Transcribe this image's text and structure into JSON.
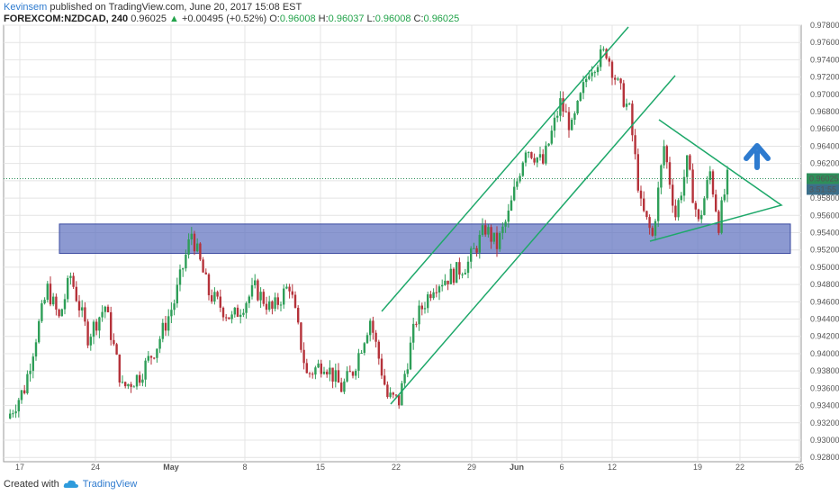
{
  "header": {
    "author": "Kevinsem",
    "published_text": "published on TradingView.com, June 20, 2017 15:08 EST",
    "symbol": "FOREXCOM:NZDCAD, 240",
    "price": "0.96025",
    "change_arrow": "▲",
    "change": "+0.00495 (+0.52%)",
    "o_label": "O:",
    "o_value": "0.96008",
    "h_label": "H:",
    "h_value": "0.96037",
    "l_label": "L:",
    "l_value": "0.96008",
    "c_label": "C:",
    "c_value": "0.96025"
  },
  "footer": {
    "created_with": "Created with",
    "brand": "TradingView",
    "logo_icon": "tradingview-cloud-icon"
  },
  "colors": {
    "up": "#2e9e58",
    "down": "#b5323a",
    "trendline": "#1ea86a",
    "zone_fill": "#6677c2",
    "zone_stroke": "#3a4aa0",
    "arrow": "#2e7bcf",
    "grid": "#e4e4e4"
  },
  "chart_data": {
    "type": "candlestick",
    "symbol": "NZDCAD",
    "timeframe": "240",
    "y_ticks": [
      "0.97800",
      "0.97600",
      "0.97400",
      "0.97200",
      "0.97000",
      "0.96800",
      "0.96600",
      "0.96400",
      "0.96200",
      "0.96000",
      "0.95800",
      "0.95600",
      "0.95400",
      "0.95200",
      "0.95000",
      "0.94800",
      "0.94600",
      "0.94400",
      "0.94200",
      "0.94000",
      "0.93800",
      "0.93600",
      "0.93400",
      "0.93200",
      "0.93000",
      "0.92800"
    ],
    "x_ticks": [
      "17",
      "24",
      "May",
      "8",
      "15",
      "22",
      "29",
      "Jun",
      "6",
      "12",
      "19",
      "22",
      "26"
    ],
    "last_price_label": "0.96025",
    "countdown_label": "3:51:55",
    "ylim": [
      0.9275,
      0.978
    ],
    "close_path": [
      {
        "x": 0,
        "y": 0.9325
      },
      {
        "x": 6,
        "y": 0.936
      },
      {
        "x": 10,
        "y": 0.942
      },
      {
        "x": 14,
        "y": 0.9475
      },
      {
        "x": 18,
        "y": 0.944
      },
      {
        "x": 22,
        "y": 0.949
      },
      {
        "x": 28,
        "y": 0.942
      },
      {
        "x": 34,
        "y": 0.9455
      },
      {
        "x": 40,
        "y": 0.936
      },
      {
        "x": 46,
        "y": 0.9375
      },
      {
        "x": 52,
        "y": 0.941
      },
      {
        "x": 58,
        "y": 0.946
      },
      {
        "x": 64,
        "y": 0.954
      },
      {
        "x": 70,
        "y": 0.947
      },
      {
        "x": 78,
        "y": 0.944
      },
      {
        "x": 86,
        "y": 0.9475
      },
      {
        "x": 92,
        "y": 0.945
      },
      {
        "x": 98,
        "y": 0.948
      },
      {
        "x": 104,
        "y": 0.9375
      },
      {
        "x": 110,
        "y": 0.939
      },
      {
        "x": 116,
        "y": 0.936
      },
      {
        "x": 120,
        "y": 0.938
      },
      {
        "x": 126,
        "y": 0.944
      },
      {
        "x": 132,
        "y": 0.935
      },
      {
        "x": 136,
        "y": 0.9345
      },
      {
        "x": 142,
        "y": 0.944
      },
      {
        "x": 148,
        "y": 0.948
      },
      {
        "x": 154,
        "y": 0.949
      },
      {
        "x": 160,
        "y": 0.9505
      },
      {
        "x": 166,
        "y": 0.9545
      },
      {
        "x": 170,
        "y": 0.9525
      },
      {
        "x": 174,
        "y": 0.956
      },
      {
        "x": 180,
        "y": 0.964
      },
      {
        "x": 186,
        "y": 0.962
      },
      {
        "x": 192,
        "y": 0.969
      },
      {
        "x": 196,
        "y": 0.966
      },
      {
        "x": 202,
        "y": 0.973
      },
      {
        "x": 208,
        "y": 0.975
      },
      {
        "x": 212,
        "y": 0.971
      },
      {
        "x": 216,
        "y": 0.968
      },
      {
        "x": 220,
        "y": 0.957
      },
      {
        "x": 224,
        "y": 0.9535
      },
      {
        "x": 228,
        "y": 0.964
      },
      {
        "x": 232,
        "y": 0.956
      },
      {
        "x": 236,
        "y": 0.962
      },
      {
        "x": 240,
        "y": 0.955
      },
      {
        "x": 244,
        "y": 0.961
      },
      {
        "x": 247,
        "y": 0.955
      },
      {
        "x": 250,
        "y": 0.9602
      }
    ],
    "annotations": {
      "resistance_zone": {
        "y_top": 0.955,
        "y_bottom": 0.9516
      },
      "channel_lines": "ascending channel (two parallel lines)",
      "triangle": "symmetrical triangle",
      "arrow": "up"
    }
  }
}
